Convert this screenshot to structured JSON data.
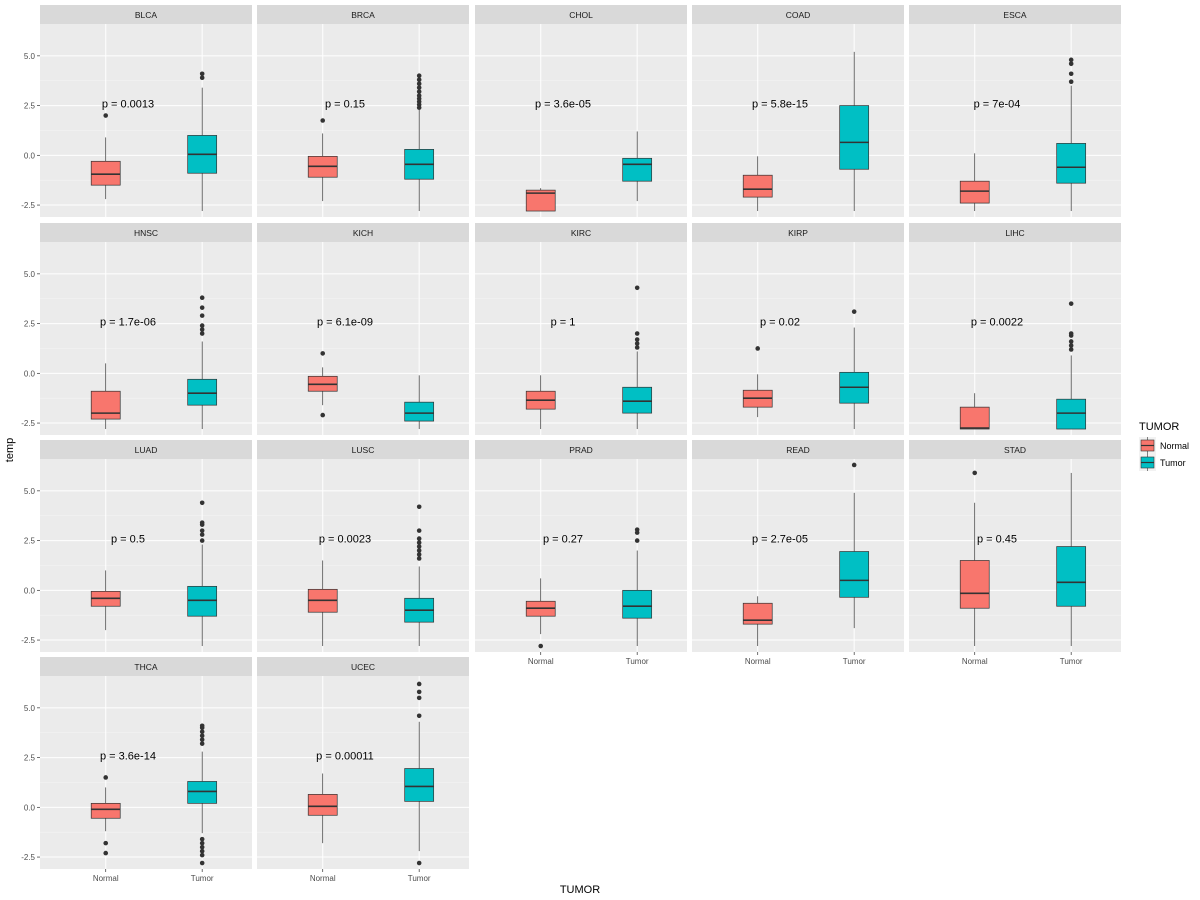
{
  "chart_data": {
    "type": "boxplot",
    "title": "",
    "xlabel": "TUMOR",
    "ylabel": "temp",
    "categories": [
      "Normal",
      "Tumor"
    ],
    "ylim": [
      -3.1,
      6.6
    ],
    "yticks": [
      -2.5,
      0.0,
      2.5,
      5.0
    ],
    "ytick_labels": [
      "-2.5",
      "0.0",
      "2.5",
      "5.0"
    ],
    "pvalue_y": 2.6,
    "legend": {
      "title": "TUMOR",
      "position": "right",
      "entries": [
        {
          "name": "Normal",
          "color": "#F8766D"
        },
        {
          "name": "Tumor",
          "color": "#00BFC4"
        }
      ]
    },
    "panels": [
      {
        "name": "BLCA",
        "pvalue": "p = 0.0013",
        "normal": {
          "whisker_low": -2.2,
          "q1": -1.5,
          "median": -0.95,
          "q3": -0.3,
          "whisker_high": 0.9,
          "outliers": [
            2.0
          ]
        },
        "tumor": {
          "whisker_low": -2.8,
          "q1": -0.9,
          "median": 0.05,
          "q3": 1.0,
          "whisker_high": 3.4,
          "outliers": [
            3.9,
            4.1
          ]
        }
      },
      {
        "name": "BRCA",
        "pvalue": "p = 0.15",
        "normal": {
          "whisker_low": -2.3,
          "q1": -1.1,
          "median": -0.55,
          "q3": -0.05,
          "whisker_high": 1.1,
          "outliers": [
            1.75
          ]
        },
        "tumor": {
          "whisker_low": -2.8,
          "q1": -1.2,
          "median": -0.45,
          "q3": 0.3,
          "whisker_high": 2.3,
          "outliers": [
            2.4,
            2.55,
            2.7,
            2.85,
            3.0,
            3.2,
            3.4,
            3.6,
            3.8,
            4.0
          ]
        }
      },
      {
        "name": "CHOL",
        "pvalue": "p = 3.6e-05",
        "normal": {
          "whisker_low": -2.8,
          "q1": -2.8,
          "median": -1.9,
          "q3": -1.75,
          "whisker_high": -1.65,
          "outliers": []
        },
        "tumor": {
          "whisker_low": -2.3,
          "q1": -1.3,
          "median": -0.45,
          "q3": -0.15,
          "whisker_high": 1.2,
          "outliers": []
        }
      },
      {
        "name": "COAD",
        "pvalue": "p = 5.8e-15",
        "normal": {
          "whisker_low": -2.8,
          "q1": -2.1,
          "median": -1.7,
          "q3": -1.0,
          "whisker_high": -0.05,
          "outliers": []
        },
        "tumor": {
          "whisker_low": -2.8,
          "q1": -0.7,
          "median": 0.65,
          "q3": 2.5,
          "whisker_high": 5.2,
          "outliers": []
        }
      },
      {
        "name": "ESCA",
        "pvalue": "p = 7e-04",
        "normal": {
          "whisker_low": -2.8,
          "q1": -2.4,
          "median": -1.8,
          "q3": -1.3,
          "whisker_high": 0.1,
          "outliers": []
        },
        "tumor": {
          "whisker_low": -2.8,
          "q1": -1.4,
          "median": -0.6,
          "q3": 0.6,
          "whisker_high": 3.5,
          "outliers": [
            3.7,
            4.1,
            4.6,
            4.8
          ]
        }
      },
      {
        "name": "HNSC",
        "pvalue": "p = 1.7e-06",
        "normal": {
          "whisker_low": -2.8,
          "q1": -2.3,
          "median": -2.0,
          "q3": -0.9,
          "whisker_high": 0.5,
          "outliers": []
        },
        "tumor": {
          "whisker_low": -2.8,
          "q1": -1.6,
          "median": -1.0,
          "q3": -0.3,
          "whisker_high": 1.6,
          "outliers": [
            2.0,
            2.2,
            2.4,
            2.9,
            3.3,
            3.8
          ]
        }
      },
      {
        "name": "KICH",
        "pvalue": "p = 6.1e-09",
        "normal": {
          "whisker_low": -1.6,
          "q1": -0.9,
          "median": -0.55,
          "q3": -0.15,
          "whisker_high": 0.3,
          "outliers": [
            1.0,
            -2.1
          ]
        },
        "tumor": {
          "whisker_low": -2.8,
          "q1": -2.4,
          "median": -2.0,
          "q3": -1.45,
          "whisker_high": -0.1,
          "outliers": []
        }
      },
      {
        "name": "KIRC",
        "pvalue": "p = 1",
        "normal": {
          "whisker_low": -2.8,
          "q1": -1.8,
          "median": -1.35,
          "q3": -0.9,
          "whisker_high": -0.1,
          "outliers": []
        },
        "tumor": {
          "whisker_low": -2.8,
          "q1": -2.0,
          "median": -1.4,
          "q3": -0.7,
          "whisker_high": 1.1,
          "outliers": [
            1.3,
            1.5,
            1.7,
            2.0,
            4.3
          ]
        }
      },
      {
        "name": "KIRP",
        "pvalue": "p = 0.02",
        "normal": {
          "whisker_low": -2.2,
          "q1": -1.7,
          "median": -1.25,
          "q3": -0.85,
          "whisker_high": -0.05,
          "outliers": [
            1.25
          ]
        },
        "tumor": {
          "whisker_low": -2.8,
          "q1": -1.5,
          "median": -0.7,
          "q3": 0.05,
          "whisker_high": 2.3,
          "outliers": [
            3.1
          ]
        }
      },
      {
        "name": "LIHC",
        "pvalue": "p = 0.0022",
        "normal": {
          "whisker_low": -2.8,
          "q1": -2.8,
          "median": -2.75,
          "q3": -1.7,
          "whisker_high": -1.0,
          "outliers": []
        },
        "tumor": {
          "whisker_low": -2.8,
          "q1": -2.8,
          "median": -2.0,
          "q3": -1.3,
          "whisker_high": 0.9,
          "outliers": [
            1.2,
            1.4,
            1.6,
            1.9,
            2.0,
            3.5
          ]
        }
      },
      {
        "name": "LUAD",
        "pvalue": "p = 0.5",
        "normal": {
          "whisker_low": -2.0,
          "q1": -0.8,
          "median": -0.4,
          "q3": -0.05,
          "whisker_high": 1.0,
          "outliers": []
        },
        "tumor": {
          "whisker_low": -2.8,
          "q1": -1.3,
          "median": -0.5,
          "q3": 0.2,
          "whisker_high": 2.3,
          "outliers": [
            2.5,
            2.8,
            3.0,
            3.3,
            3.4,
            4.4
          ]
        }
      },
      {
        "name": "LUSC",
        "pvalue": "p = 0.0023",
        "normal": {
          "whisker_low": -2.8,
          "q1": -1.1,
          "median": -0.5,
          "q3": 0.05,
          "whisker_high": 1.5,
          "outliers": []
        },
        "tumor": {
          "whisker_low": -2.8,
          "q1": -1.6,
          "median": -1.0,
          "q3": -0.4,
          "whisker_high": 1.2,
          "outliers": [
            1.6,
            1.8,
            2.0,
            2.2,
            2.4,
            2.6,
            3.0,
            4.2
          ]
        }
      },
      {
        "name": "PRAD",
        "pvalue": "p = 0.27",
        "normal": {
          "whisker_low": -2.2,
          "q1": -1.3,
          "median": -0.9,
          "q3": -0.55,
          "whisker_high": 0.6,
          "outliers": [
            -2.8
          ]
        },
        "tumor": {
          "whisker_low": -2.8,
          "q1": -1.4,
          "median": -0.8,
          "q3": 0.0,
          "whisker_high": 2.0,
          "outliers": [
            2.5,
            2.9,
            3.05
          ]
        }
      },
      {
        "name": "READ",
        "pvalue": "p = 2.7e-05",
        "normal": {
          "whisker_low": -2.8,
          "q1": -1.7,
          "median": -1.5,
          "q3": -0.65,
          "whisker_high": -0.3,
          "outliers": []
        },
        "tumor": {
          "whisker_low": -1.9,
          "q1": -0.35,
          "median": 0.5,
          "q3": 1.95,
          "whisker_high": 4.9,
          "outliers": [
            6.3
          ]
        }
      },
      {
        "name": "STAD",
        "pvalue": "p = 0.45",
        "normal": {
          "whisker_low": -2.8,
          "q1": -0.9,
          "median": -0.15,
          "q3": 1.5,
          "whisker_high": 4.4,
          "outliers": [
            5.9
          ]
        },
        "tumor": {
          "whisker_low": -2.8,
          "q1": -0.8,
          "median": 0.4,
          "q3": 2.2,
          "whisker_high": 5.9,
          "outliers": []
        }
      },
      {
        "name": "THCA",
        "pvalue": "p = 3.6e-14",
        "normal": {
          "whisker_low": -1.2,
          "q1": -0.55,
          "median": -0.1,
          "q3": 0.2,
          "whisker_high": 1.0,
          "outliers": [
            1.5,
            -1.8,
            -2.3
          ]
        },
        "tumor": {
          "whisker_low": -1.3,
          "q1": 0.2,
          "median": 0.8,
          "q3": 1.3,
          "whisker_high": 2.8,
          "outliers": [
            3.2,
            3.4,
            3.6,
            3.8,
            4.0,
            4.1,
            -1.6,
            -1.8,
            -2.0,
            -2.2,
            -2.4,
            -2.8
          ]
        }
      },
      {
        "name": "UCEC",
        "pvalue": "p = 0.00011",
        "normal": {
          "whisker_low": -1.8,
          "q1": -0.4,
          "median": 0.05,
          "q3": 0.65,
          "whisker_high": 1.7,
          "outliers": []
        },
        "tumor": {
          "whisker_low": -2.2,
          "q1": 0.3,
          "median": 1.05,
          "q3": 1.95,
          "whisker_high": 4.3,
          "outliers": [
            4.6,
            5.5,
            5.8,
            6.2,
            -2.8
          ]
        }
      }
    ]
  }
}
